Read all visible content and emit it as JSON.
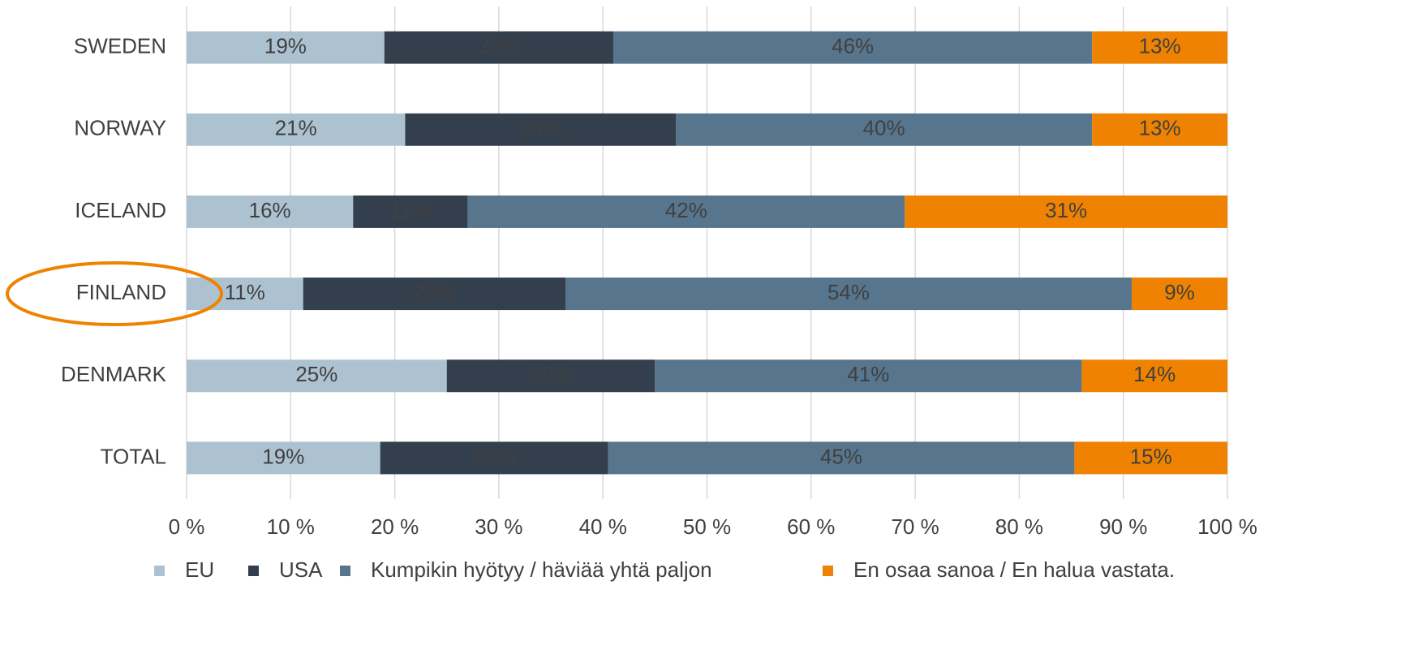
{
  "chart_data": {
    "type": "stacked_barh",
    "categories": [
      "SWEDEN",
      "NORWAY",
      "ICELAND",
      "FINLAND",
      "DENMARK",
      "TOTAL"
    ],
    "series": [
      {
        "name": "EU",
        "color": "#adc2d0",
        "values": [
          19,
          21,
          16,
          11.2,
          25,
          18.6
        ],
        "value_labels": [
          "19%",
          "21%",
          "16%",
          "11%",
          "25%",
          "19%"
        ]
      },
      {
        "name": "USA",
        "color": "#333f4c",
        "values": [
          22,
          26,
          11,
          25.2,
          20,
          21.9
        ],
        "value_labels": [
          "22%",
          "26%",
          "11%",
          "25%",
          "20%",
          "22%"
        ]
      },
      {
        "name": "Kumpikin hyötyy / häviää yhtä paljon",
        "color": "#57758c",
        "values": [
          46,
          40,
          42,
          54.4,
          41,
          44.8
        ],
        "value_labels": [
          "46%",
          "40%",
          "42%",
          "54%",
          "41%",
          "45%"
        ]
      },
      {
        "name": "En osaa sanoa / En halua vastata.",
        "color": "#ef8200",
        "values": [
          13,
          13,
          31,
          9.2,
          14,
          14.7
        ],
        "value_labels": [
          "13%",
          "13%",
          "31%",
          "9%",
          "14%",
          "15%"
        ]
      }
    ],
    "xlim": [
      0,
      100
    ],
    "xticks": [
      {
        "value": 0,
        "label": "0 %"
      },
      {
        "value": 10,
        "label": "10 %"
      },
      {
        "value": 20,
        "label": "20 %"
      },
      {
        "value": 30,
        "label": "30 %"
      },
      {
        "value": 40,
        "label": "40 %"
      },
      {
        "value": 50,
        "label": "50 %"
      },
      {
        "value": 60,
        "label": "60 %"
      },
      {
        "value": 70,
        "label": "70 %"
      },
      {
        "value": 80,
        "label": "80 %"
      },
      {
        "value": 90,
        "label": "90 %"
      },
      {
        "value": 100,
        "label": "100 %"
      }
    ],
    "grid": true,
    "legend": "bottom"
  }
}
